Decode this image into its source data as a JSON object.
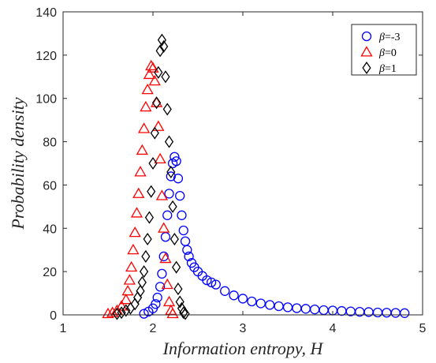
{
  "chart_data": {
    "type": "scatter",
    "xlabel": "Information entropy, H",
    "ylabel": "Probability density",
    "xlim": [
      1,
      5
    ],
    "ylim": [
      0,
      140
    ],
    "xticks": [
      "1",
      "2",
      "3",
      "4",
      "5"
    ],
    "yticks": [
      "0",
      "20",
      "40",
      "60",
      "80",
      "100",
      "120",
      "140"
    ],
    "grid": false,
    "legend_position": "top-right",
    "series": [
      {
        "name": "β=-3",
        "name_symbol": "β",
        "name_rest": "=-3",
        "marker": "circle",
        "color": "#0000ff",
        "x": [
          1.9,
          1.95,
          2.0,
          2.03,
          2.05,
          2.08,
          2.1,
          2.12,
          2.14,
          2.16,
          2.18,
          2.2,
          2.22,
          2.24,
          2.26,
          2.28,
          2.3,
          2.32,
          2.34,
          2.36,
          2.38,
          2.4,
          2.43,
          2.46,
          2.5,
          2.55,
          2.6,
          2.65,
          2.7,
          2.8,
          2.9,
          3.0,
          3.1,
          3.2,
          3.3,
          3.4,
          3.5,
          3.6,
          3.7,
          3.8,
          3.9,
          4.0,
          4.1,
          4.2,
          4.3,
          4.4,
          4.5,
          4.6,
          4.7,
          4.8
        ],
        "y": [
          0.5,
          1.5,
          3,
          5,
          8,
          13,
          19,
          27,
          36,
          46,
          56,
          64,
          70,
          73,
          71,
          63,
          55,
          46,
          39,
          34,
          30,
          27,
          24,
          22,
          20,
          18,
          16,
          15,
          14,
          11,
          9,
          7.5,
          6.2,
          5.3,
          4.6,
          4.0,
          3.5,
          3.1,
          2.8,
          2.5,
          2.2,
          2.0,
          1.8,
          1.6,
          1.4,
          1.3,
          1.1,
          1.0,
          0.9,
          0.8
        ]
      },
      {
        "name": "β=0",
        "name_symbol": "β",
        "name_rest": "=0",
        "marker": "triangle",
        "color": "#ff0000",
        "x": [
          1.5,
          1.55,
          1.6,
          1.65,
          1.7,
          1.72,
          1.74,
          1.76,
          1.78,
          1.8,
          1.82,
          1.84,
          1.86,
          1.88,
          1.9,
          1.92,
          1.94,
          1.96,
          1.98,
          2.0,
          2.02,
          2.04,
          2.06,
          2.08,
          2.1,
          2.12,
          2.14,
          2.16,
          2.18,
          2.2,
          2.22
        ],
        "y": [
          0.5,
          1,
          2,
          4,
          7,
          11,
          16,
          22,
          30,
          38,
          47,
          56,
          66,
          76,
          86,
          96,
          104,
          111,
          115,
          114,
          108,
          98,
          87,
          72,
          55,
          40,
          26,
          14,
          6,
          2,
          0.5
        ]
      },
      {
        "name": "β=1",
        "name_symbol": "β",
        "name_rest": "=1",
        "marker": "diamond",
        "color": "#000000",
        "x": [
          1.6,
          1.65,
          1.7,
          1.75,
          1.8,
          1.83,
          1.86,
          1.88,
          1.9,
          1.92,
          1.94,
          1.96,
          1.98,
          2.0,
          2.02,
          2.04,
          2.06,
          2.08,
          2.1,
          2.12,
          2.14,
          2.16,
          2.18,
          2.2,
          2.22,
          2.24,
          2.26,
          2.28,
          2.3,
          2.32,
          2.34,
          2.36
        ],
        "y": [
          0.5,
          1,
          2,
          3,
          5,
          8,
          11,
          15,
          20,
          27,
          35,
          45,
          57,
          70,
          84,
          98,
          112,
          122,
          127,
          124,
          110,
          95,
          80,
          66,
          50,
          35,
          22,
          12,
          6,
          3,
          1,
          0.5
        ]
      }
    ]
  }
}
